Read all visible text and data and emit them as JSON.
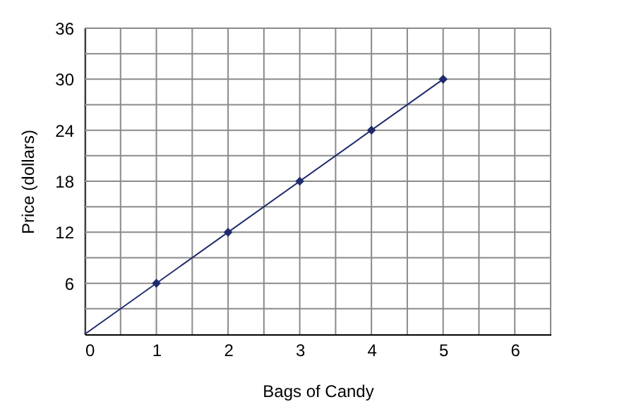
{
  "chart_data": {
    "type": "line",
    "xlabel": "Bags of Candy",
    "ylabel": "Price (dollars)",
    "series": [
      {
        "type": "line",
        "color": "#1f2a6b",
        "x": [
          0,
          5
        ],
        "values": [
          0,
          30
        ],
        "marker": "none"
      },
      {
        "type": "scatter",
        "color": "#1f2a6b",
        "x": [
          1,
          2,
          3,
          4,
          5
        ],
        "values": [
          6,
          12,
          18,
          24,
          30
        ],
        "marker": "diamond"
      }
    ],
    "xlim": [
      0,
      6.5
    ],
    "xticks": [
      0,
      {
        "value": 0.5,
        "label": null
      },
      1,
      {
        "value": 1.5,
        "label": null
      },
      2,
      {
        "value": 2.5,
        "label": null
      },
      3,
      {
        "value": 3.5,
        "label": null
      },
      4,
      {
        "value": 4.5,
        "label": null
      },
      5,
      {
        "value": 5.5,
        "label": null
      },
      6,
      {
        "value": 6.5,
        "label": null
      }
    ],
    "ylim": [
      0,
      36
    ],
    "yticks": [
      {
        "value": 3,
        "label": null
      },
      6,
      {
        "value": 9,
        "label": null
      },
      12,
      {
        "value": 15,
        "label": null
      },
      18,
      {
        "value": 21,
        "label": null
      },
      24,
      {
        "value": 27,
        "label": null
      },
      30,
      {
        "value": 33,
        "label": null
      },
      36
    ],
    "grid": true
  }
}
